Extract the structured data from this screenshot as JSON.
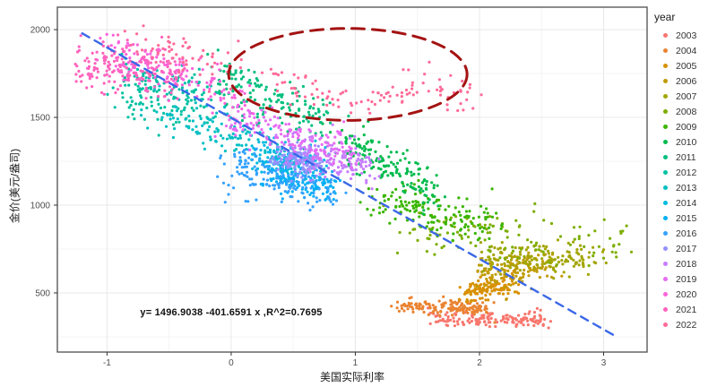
{
  "chart_data": {
    "type": "scatter",
    "title": "",
    "x_label": "美国实际利率",
    "y_label": "金价(美元/盎司)",
    "x_ticks": [
      -1,
      0,
      1,
      2,
      3
    ],
    "y_ticks": [
      500,
      1000,
      1500,
      2000
    ],
    "x_domain": [
      -1.4,
      3.35
    ],
    "y_domain": [
      163,
      2128
    ],
    "x_minor_ticks": [
      -0.5,
      0.5,
      1.5,
      2.5
    ],
    "y_minor_ticks": [
      250,
      750,
      1250,
      1750
    ],
    "grid": "on",
    "legend_position": "right",
    "legend": {
      "title": "year"
    },
    "points_note": "Dense daily data approximated as clusters; segments are [x1,y1,x2,y2,sigma_x,sigma_y,n] in data units (x = US real interest rate %, y = gold price USD/oz).",
    "series": [
      {
        "name": "2003",
        "color": "#F8766D",
        "segments": [
          [
            1.6,
            355,
            2.52,
            348,
            0.05,
            22,
            150
          ]
        ]
      },
      {
        "name": "2004",
        "color": "#EA8331",
        "segments": [
          [
            1.35,
            430,
            2.08,
            408,
            0.05,
            24,
            140
          ]
        ]
      },
      {
        "name": "2005",
        "color": "#D89000",
        "segments": [
          [
            1.88,
            498,
            2.28,
            560,
            0.05,
            30,
            120
          ]
        ]
      },
      {
        "name": "2006",
        "color": "#C09B00",
        "segments": [
          [
            1.98,
            610,
            2.55,
            660,
            0.06,
            48,
            120
          ]
        ]
      },
      {
        "name": "2007",
        "color": "#A3A500",
        "segments": [
          [
            2.05,
            690,
            2.95,
            705,
            0.06,
            48,
            160
          ]
        ]
      },
      {
        "name": "2008",
        "color": "#7CAE00",
        "segments": [
          [
            1.45,
            840,
            3.15,
            810,
            0.1,
            70,
            120
          ]
        ]
      },
      {
        "name": "2009",
        "color": "#39B600",
        "segments": [
          [
            1.15,
            1010,
            2.15,
            890,
            0.07,
            60,
            150
          ]
        ]
      },
      {
        "name": "2010",
        "color": "#00BB4E",
        "segments": [
          [
            0.9,
            1380,
            1.65,
            1060,
            0.07,
            55,
            160
          ]
        ]
      },
      {
        "name": "2011",
        "color": "#00BF7D",
        "segments": [
          [
            -0.1,
            1720,
            0.8,
            1440,
            0.07,
            70,
            160
          ]
        ]
      },
      {
        "name": "2012",
        "color": "#00C1A3",
        "segments": [
          [
            -0.9,
            1670,
            -0.2,
            1610,
            0.07,
            80,
            150
          ]
        ]
      },
      {
        "name": "2013",
        "color": "#00BFC4",
        "segments": [
          [
            -0.6,
            1530,
            0.5,
            1270,
            0.09,
            70,
            140
          ]
        ]
      },
      {
        "name": "2014",
        "color": "#00BAE0",
        "segments": [
          [
            0.2,
            1290,
            0.75,
            1220,
            0.06,
            50,
            130
          ]
        ]
      },
      {
        "name": "2015",
        "color": "#00B0F6",
        "segments": [
          [
            0.3,
            1160,
            0.85,
            1090,
            0.06,
            45,
            130
          ]
        ]
      },
      {
        "name": "2016",
        "color": "#35A2FF",
        "segments": [
          [
            -0.05,
            1230,
            0.8,
            1080,
            0.07,
            65,
            160
          ]
        ]
      },
      {
        "name": "2017",
        "color": "#9590FF",
        "segments": [
          [
            0.38,
            1270,
            0.68,
            1240,
            0.06,
            45,
            130
          ]
        ]
      },
      {
        "name": "2018",
        "color": "#C77CFF",
        "segments": [
          [
            0.45,
            1330,
            1.15,
            1200,
            0.07,
            55,
            150
          ]
        ]
      },
      {
        "name": "2019",
        "color": "#E76BF3",
        "segments": [
          [
            0.95,
            1290,
            0.0,
            1480,
            0.07,
            55,
            150
          ]
        ]
      },
      {
        "name": "2020",
        "color": "#FA62DB",
        "segments": [
          [
            0.15,
            1590,
            -1.0,
            1870,
            0.07,
            60,
            150
          ]
        ]
      },
      {
        "name": "2021",
        "color": "#FF62BC",
        "segments": [
          [
            -1.2,
            1800,
            -0.45,
            1760,
            0.07,
            80,
            170
          ]
        ]
      },
      {
        "name": "2022",
        "color": "#FF6A98",
        "segments": [
          [
            -0.8,
            1920,
            0.1,
            1790,
            0.07,
            55,
            60
          ],
          [
            0.3,
            1730,
            0.9,
            1590,
            0.06,
            45,
            40
          ],
          [
            0.9,
            1570,
            1.4,
            1630,
            0.06,
            40,
            30
          ],
          [
            1.4,
            1700,
            1.9,
            1620,
            0.06,
            45,
            35
          ]
        ]
      }
    ],
    "annotations": {
      "equation_text": "y= 1496.9038 -401.6591 x ,R^2=0.7695",
      "regression": {
        "intercept": 1496.9038,
        "slope": -401.6591,
        "r_squared": 0.7695,
        "x_from": -1.2,
        "x_to": 3.1,
        "color": "#3B68E8",
        "style": "dashed"
      },
      "ellipse": {
        "cx": 0.94,
        "cy": 1745,
        "rx": 0.96,
        "ry": 262,
        "color": "#A41212",
        "style": "dashed"
      }
    },
    "colors": {
      "grid_major": "#e8e8e8",
      "grid_minor": "#f4f4f4",
      "panel_border": "#4d4d4d",
      "tick_label": "#4d4d4d",
      "axis_text": "#1a1a1a"
    }
  }
}
